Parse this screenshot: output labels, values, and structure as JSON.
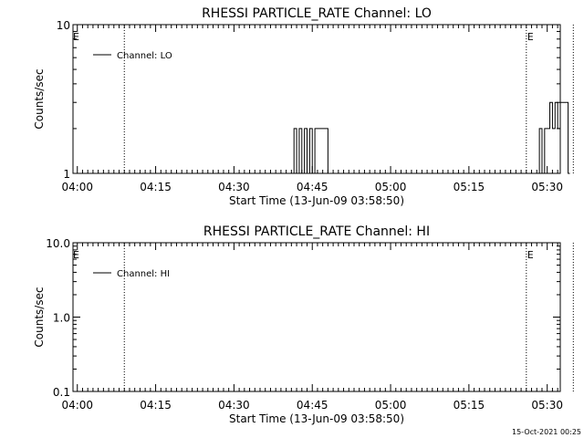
{
  "chart_data": [
    {
      "type": "line",
      "title": "RHESSI PARTICLE_RATE Channel: LO",
      "xlabel": "Start Time (13-Jun-09 03:58:50)",
      "ylabel": "Counts/sec",
      "yscale": "log",
      "ylim": [
        1,
        10
      ],
      "ytick_labels": [
        "1",
        "10"
      ],
      "xlim_minutes": [
        3.17,
        96.5
      ],
      "xtick_labels": [
        "04:00",
        "04:15",
        "04:30",
        "04:45",
        "05:00",
        "05:15",
        "05:30"
      ],
      "legend": {
        "label": "Channel: LO",
        "placement": "top-left"
      },
      "event_markers": [
        {
          "label": "E",
          "time": "03:59"
        },
        {
          "label": "E",
          "time": "05:26"
        }
      ],
      "dotted_lines": [
        "04:09",
        "05:26",
        "05:35"
      ],
      "series": [
        {
          "name": "Channel: LO",
          "x": [
            "04:41",
            "04:41.5",
            "04:42",
            "04:42.5",
            "04:43",
            "04:43.5",
            "04:44",
            "04:44.5",
            "04:45",
            "04:45.5",
            "04:46",
            "04:47",
            "04:48",
            "05:28",
            "05:28.5",
            "05:29",
            "05:29.5",
            "05:30",
            "05:30.5",
            "05:31",
            "05:31.5",
            "05:32",
            "05:32.5",
            "05:33",
            "05:34"
          ],
          "values": [
            1,
            2,
            1,
            2,
            1,
            2,
            1,
            2,
            1,
            2,
            2,
            2,
            1,
            1,
            2,
            1,
            2,
            2,
            3,
            2,
            3,
            2,
            3,
            3,
            1
          ]
        }
      ]
    },
    {
      "type": "line",
      "title": "RHESSI PARTICLE_RATE Channel: HI",
      "xlabel": "Start Time (13-Jun-09 03:58:50)",
      "ylabel": "Counts/sec",
      "yscale": "log",
      "ylim": [
        0.1,
        10
      ],
      "ytick_labels": [
        "0.1",
        "1.0",
        "10.0"
      ],
      "xlim_minutes": [
        3.17,
        96.5
      ],
      "xtick_labels": [
        "04:00",
        "04:15",
        "04:30",
        "04:45",
        "05:00",
        "05:15",
        "05:30"
      ],
      "legend": {
        "label": "Channel: HI",
        "placement": "top-left"
      },
      "event_markers": [
        {
          "label": "E",
          "time": "03:59"
        },
        {
          "label": "E",
          "time": "05:26"
        }
      ],
      "dotted_lines": [
        "04:09",
        "05:26",
        "05:35"
      ],
      "series": [
        {
          "name": "Channel: HI",
          "x": [],
          "values": []
        }
      ]
    }
  ],
  "footer": {
    "timestamp": "15-Oct-2021 00:25"
  }
}
